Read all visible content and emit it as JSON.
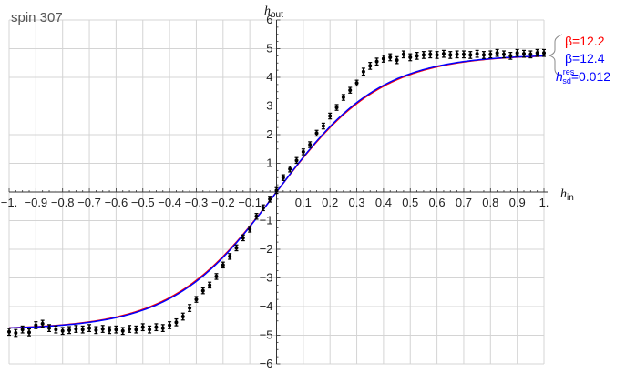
{
  "chart_data": {
    "type": "scatter",
    "title": "spin 307",
    "xlabel": "h",
    "xlabel_sub": "in",
    "ylabel": "h",
    "ylabel_sub": "out",
    "xlim": [
      -1,
      1
    ],
    "ylim": [
      -6,
      6
    ],
    "grid": true,
    "x_ticks": [
      {
        "value": -1,
        "label": "-1."
      },
      {
        "value": -0.9,
        "label": "-0.9"
      },
      {
        "value": -0.8,
        "label": "-0.8"
      },
      {
        "value": -0.7,
        "label": "-0.7"
      },
      {
        "value": -0.6,
        "label": "-0.6"
      },
      {
        "value": -0.5,
        "label": "-0.5"
      },
      {
        "value": -0.4,
        "label": "-0.4"
      },
      {
        "value": -0.3,
        "label": "-0.3"
      },
      {
        "value": -0.2,
        "label": "-0.2"
      },
      {
        "value": -0.1,
        "label": "-0.1"
      },
      {
        "value": 0.1,
        "label": "0.1"
      },
      {
        "value": 0.2,
        "label": "0.2"
      },
      {
        "value": 0.3,
        "label": "0.3"
      },
      {
        "value": 0.4,
        "label": "0.4"
      },
      {
        "value": 0.5,
        "label": "0.5"
      },
      {
        "value": 0.6,
        "label": "0.6"
      },
      {
        "value": 0.7,
        "label": "0.7"
      },
      {
        "value": 0.8,
        "label": "0.8"
      },
      {
        "value": 0.9,
        "label": "0.9"
      },
      {
        "value": 1,
        "label": "1."
      }
    ],
    "y_ticks": [
      {
        "value": -6,
        "label": "-6"
      },
      {
        "value": -5,
        "label": "-5"
      },
      {
        "value": -4,
        "label": "-4"
      },
      {
        "value": -3,
        "label": "-3"
      },
      {
        "value": -2,
        "label": "-2"
      },
      {
        "value": -1,
        "label": "-1"
      },
      {
        "value": 1,
        "label": "1"
      },
      {
        "value": 2,
        "label": "2"
      },
      {
        "value": 3,
        "label": "3"
      },
      {
        "value": 4,
        "label": "4"
      },
      {
        "value": 5,
        "label": "5"
      },
      {
        "value": 6,
        "label": "6"
      }
    ],
    "series": [
      {
        "type": "scatter_errorbar",
        "color": "#000000",
        "points": [
          {
            "x": -1.0,
            "y": -4.88,
            "err": 0.12
          },
          {
            "x": -0.975,
            "y": -4.92,
            "err": 0.12
          },
          {
            "x": -0.95,
            "y": -4.8,
            "err": 0.12
          },
          {
            "x": -0.925,
            "y": -4.9,
            "err": 0.12
          },
          {
            "x": -0.9,
            "y": -4.65,
            "err": 0.12
          },
          {
            "x": -0.875,
            "y": -4.6,
            "err": 0.12
          },
          {
            "x": -0.85,
            "y": -4.75,
            "err": 0.12
          },
          {
            "x": -0.825,
            "y": -4.8,
            "err": 0.12
          },
          {
            "x": -0.8,
            "y": -4.85,
            "err": 0.12
          },
          {
            "x": -0.775,
            "y": -4.82,
            "err": 0.12
          },
          {
            "x": -0.75,
            "y": -4.78,
            "err": 0.12
          },
          {
            "x": -0.725,
            "y": -4.8,
            "err": 0.12
          },
          {
            "x": -0.7,
            "y": -4.75,
            "err": 0.12
          },
          {
            "x": -0.675,
            "y": -4.82,
            "err": 0.12
          },
          {
            "x": -0.65,
            "y": -4.78,
            "err": 0.12
          },
          {
            "x": -0.625,
            "y": -4.82,
            "err": 0.12
          },
          {
            "x": -0.6,
            "y": -4.8,
            "err": 0.12
          },
          {
            "x": -0.575,
            "y": -4.85,
            "err": 0.12
          },
          {
            "x": -0.55,
            "y": -4.78,
            "err": 0.12
          },
          {
            "x": -0.525,
            "y": -4.8,
            "err": 0.12
          },
          {
            "x": -0.5,
            "y": -4.72,
            "err": 0.12
          },
          {
            "x": -0.475,
            "y": -4.8,
            "err": 0.12
          },
          {
            "x": -0.45,
            "y": -4.72,
            "err": 0.12
          },
          {
            "x": -0.425,
            "y": -4.75,
            "err": 0.12
          },
          {
            "x": -0.4,
            "y": -4.65,
            "err": 0.12
          },
          {
            "x": -0.375,
            "y": -4.55,
            "err": 0.12
          },
          {
            "x": -0.35,
            "y": -4.35,
            "err": 0.12
          },
          {
            "x": -0.325,
            "y": -4.05,
            "err": 0.12
          },
          {
            "x": -0.3,
            "y": -3.75,
            "err": 0.1
          },
          {
            "x": -0.275,
            "y": -3.45,
            "err": 0.1
          },
          {
            "x": -0.25,
            "y": -3.25,
            "err": 0.1
          },
          {
            "x": -0.225,
            "y": -2.95,
            "err": 0.1
          },
          {
            "x": -0.2,
            "y": -2.55,
            "err": 0.1
          },
          {
            "x": -0.175,
            "y": -2.25,
            "err": 0.1
          },
          {
            "x": -0.15,
            "y": -1.95,
            "err": 0.1
          },
          {
            "x": -0.125,
            "y": -1.6,
            "err": 0.1
          },
          {
            "x": -0.1,
            "y": -1.3,
            "err": 0.1
          },
          {
            "x": -0.075,
            "y": -0.85,
            "err": 0.1
          },
          {
            "x": -0.05,
            "y": -0.55,
            "err": 0.1
          },
          {
            "x": -0.025,
            "y": -0.25,
            "err": 0.1
          },
          {
            "x": 0.0,
            "y": 0.05,
            "err": 0.1
          },
          {
            "x": 0.025,
            "y": 0.5,
            "err": 0.1
          },
          {
            "x": 0.05,
            "y": 0.8,
            "err": 0.1
          },
          {
            "x": 0.075,
            "y": 1.1,
            "err": 0.1
          },
          {
            "x": 0.1,
            "y": 1.4,
            "err": 0.1
          },
          {
            "x": 0.125,
            "y": 1.65,
            "err": 0.1
          },
          {
            "x": 0.15,
            "y": 2.05,
            "err": 0.1
          },
          {
            "x": 0.175,
            "y": 2.3,
            "err": 0.1
          },
          {
            "x": 0.2,
            "y": 2.65,
            "err": 0.1
          },
          {
            "x": 0.225,
            "y": 2.95,
            "err": 0.1
          },
          {
            "x": 0.25,
            "y": 3.3,
            "err": 0.1
          },
          {
            "x": 0.275,
            "y": 3.55,
            "err": 0.1
          },
          {
            "x": 0.3,
            "y": 3.8,
            "err": 0.1
          },
          {
            "x": 0.325,
            "y": 4.2,
            "err": 0.12
          },
          {
            "x": 0.35,
            "y": 4.4,
            "err": 0.12
          },
          {
            "x": 0.375,
            "y": 4.55,
            "err": 0.12
          },
          {
            "x": 0.4,
            "y": 4.65,
            "err": 0.12
          },
          {
            "x": 0.425,
            "y": 4.7,
            "err": 0.12
          },
          {
            "x": 0.45,
            "y": 4.6,
            "err": 0.12
          },
          {
            "x": 0.475,
            "y": 4.8,
            "err": 0.12
          },
          {
            "x": 0.5,
            "y": 4.7,
            "err": 0.12
          },
          {
            "x": 0.525,
            "y": 4.75,
            "err": 0.12
          },
          {
            "x": 0.55,
            "y": 4.78,
            "err": 0.12
          },
          {
            "x": 0.575,
            "y": 4.8,
            "err": 0.12
          },
          {
            "x": 0.6,
            "y": 4.78,
            "err": 0.12
          },
          {
            "x": 0.625,
            "y": 4.82,
            "err": 0.12
          },
          {
            "x": 0.65,
            "y": 4.78,
            "err": 0.12
          },
          {
            "x": 0.675,
            "y": 4.8,
            "err": 0.12
          },
          {
            "x": 0.7,
            "y": 4.8,
            "err": 0.12
          },
          {
            "x": 0.725,
            "y": 4.78,
            "err": 0.12
          },
          {
            "x": 0.75,
            "y": 4.82,
            "err": 0.12
          },
          {
            "x": 0.775,
            "y": 4.78,
            "err": 0.12
          },
          {
            "x": 0.8,
            "y": 4.8,
            "err": 0.12
          },
          {
            "x": 0.825,
            "y": 4.85,
            "err": 0.12
          },
          {
            "x": 0.85,
            "y": 4.8,
            "err": 0.12
          },
          {
            "x": 0.875,
            "y": 4.75,
            "err": 0.12
          },
          {
            "x": 0.9,
            "y": 4.85,
            "err": 0.12
          },
          {
            "x": 0.925,
            "y": 4.82,
            "err": 0.12
          },
          {
            "x": 0.95,
            "y": 4.8,
            "err": 0.12
          },
          {
            "x": 0.975,
            "y": 4.85,
            "err": 0.12
          },
          {
            "x": 1.0,
            "y": 4.85,
            "err": 0.12
          }
        ]
      },
      {
        "type": "line",
        "color": "#ff0000",
        "formula": "4.8*tanh(12.2*x/4.8)",
        "beta": 12.2,
        "amplitude": 4.8
      },
      {
        "type": "line",
        "color": "#0000ff",
        "formula": "4.8*tanh(12.4*x/4.8)",
        "beta": 12.4,
        "amplitude": 4.8
      }
    ],
    "legend": {
      "placement": "right",
      "entries": [
        {
          "text": "β=12.2",
          "color": "#ff0000"
        },
        {
          "text": "β=12.4",
          "color": "#0000ff"
        },
        {
          "text_prefix": "h",
          "sup": "res",
          "sub": "sd",
          "text_suffix": "=0.012",
          "color": "#0000ff"
        }
      ]
    }
  }
}
